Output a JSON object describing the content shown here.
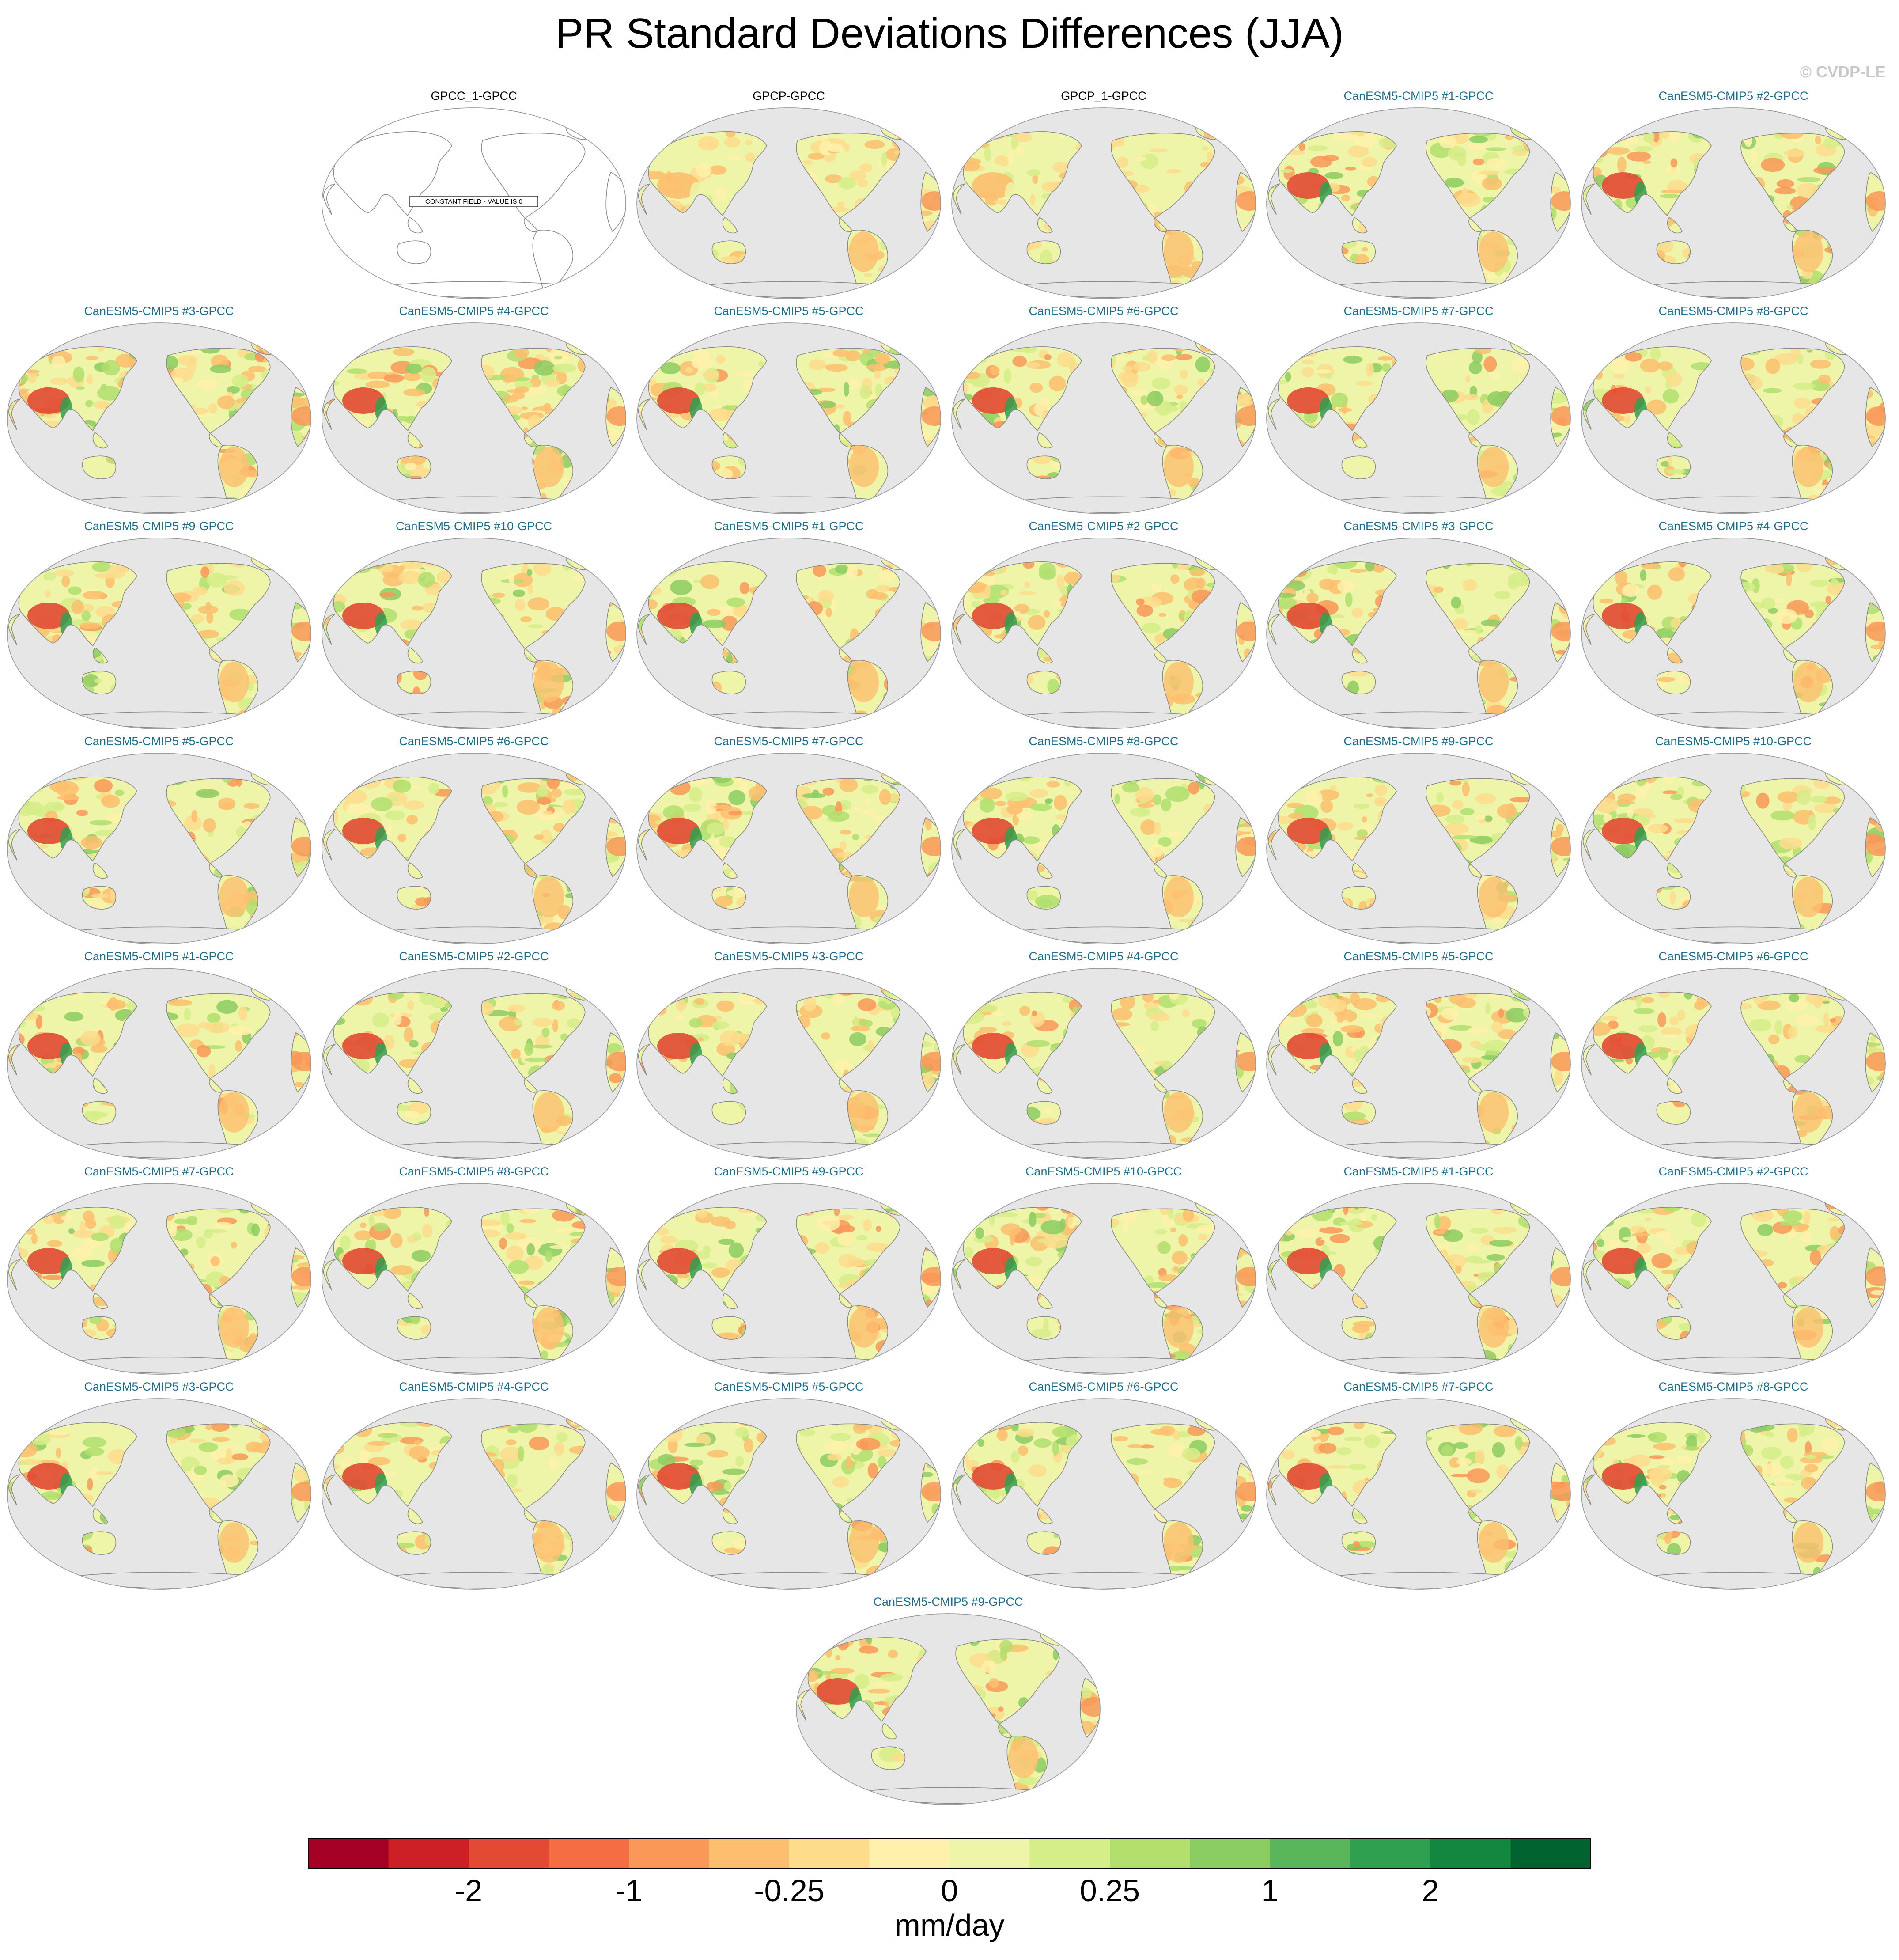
{
  "title": "PR Standard Deviations Differences (JJA)",
  "watermark": "© CVDP-LE",
  "panels": [
    {
      "title": "GPCC_1-GPCC",
      "kind": "obs",
      "constant": true,
      "constant_label": "CONSTANT FIELD - VALUE IS 0"
    },
    {
      "title": "GPCP-GPCC",
      "kind": "obs"
    },
    {
      "title": "GPCP_1-GPCC",
      "kind": "obs"
    },
    {
      "title": "CanESM5-CMIP5 #1-GPCC",
      "kind": "model"
    },
    {
      "title": "CanESM5-CMIP5 #2-GPCC",
      "kind": "model"
    },
    {
      "title": "CanESM5-CMIP5 #3-GPCC",
      "kind": "model"
    },
    {
      "title": "CanESM5-CMIP5 #4-GPCC",
      "kind": "model"
    },
    {
      "title": "CanESM5-CMIP5 #5-GPCC",
      "kind": "model"
    },
    {
      "title": "CanESM5-CMIP5 #6-GPCC",
      "kind": "model"
    },
    {
      "title": "CanESM5-CMIP5 #7-GPCC",
      "kind": "model"
    },
    {
      "title": "CanESM5-CMIP5 #8-GPCC",
      "kind": "model"
    },
    {
      "title": "CanESM5-CMIP5 #9-GPCC",
      "kind": "model"
    },
    {
      "title": "CanESM5-CMIP5 #10-GPCC",
      "kind": "model"
    },
    {
      "title": "CanESM5-CMIP5 #1-GPCC",
      "kind": "model"
    },
    {
      "title": "CanESM5-CMIP5 #2-GPCC",
      "kind": "model"
    },
    {
      "title": "CanESM5-CMIP5 #3-GPCC",
      "kind": "model"
    },
    {
      "title": "CanESM5-CMIP5 #4-GPCC",
      "kind": "model"
    },
    {
      "title": "CanESM5-CMIP5 #5-GPCC",
      "kind": "model"
    },
    {
      "title": "CanESM5-CMIP5 #6-GPCC",
      "kind": "model"
    },
    {
      "title": "CanESM5-CMIP5 #7-GPCC",
      "kind": "model"
    },
    {
      "title": "CanESM5-CMIP5 #8-GPCC",
      "kind": "model"
    },
    {
      "title": "CanESM5-CMIP5 #9-GPCC",
      "kind": "model"
    },
    {
      "title": "CanESM5-CMIP5 #10-GPCC",
      "kind": "model"
    },
    {
      "title": "CanESM5-CMIP5 #1-GPCC",
      "kind": "model"
    },
    {
      "title": "CanESM5-CMIP5 #2-GPCC",
      "kind": "model"
    },
    {
      "title": "CanESM5-CMIP5 #3-GPCC",
      "kind": "model"
    },
    {
      "title": "CanESM5-CMIP5 #4-GPCC",
      "kind": "model"
    },
    {
      "title": "CanESM5-CMIP5 #5-GPCC",
      "kind": "model"
    },
    {
      "title": "CanESM5-CMIP5 #6-GPCC",
      "kind": "model"
    },
    {
      "title": "CanESM5-CMIP5 #7-GPCC",
      "kind": "model"
    },
    {
      "title": "CanESM5-CMIP5 #8-GPCC",
      "kind": "model"
    },
    {
      "title": "CanESM5-CMIP5 #9-GPCC",
      "kind": "model"
    },
    {
      "title": "CanESM5-CMIP5 #10-GPCC",
      "kind": "model"
    },
    {
      "title": "CanESM5-CMIP5 #1-GPCC",
      "kind": "model"
    },
    {
      "title": "CanESM5-CMIP5 #2-GPCC",
      "kind": "model"
    },
    {
      "title": "CanESM5-CMIP5 #3-GPCC",
      "kind": "model"
    },
    {
      "title": "CanESM5-CMIP5 #4-GPCC",
      "kind": "model"
    },
    {
      "title": "CanESM5-CMIP5 #5-GPCC",
      "kind": "model"
    },
    {
      "title": "CanESM5-CMIP5 #6-GPCC",
      "kind": "model"
    },
    {
      "title": "CanESM5-CMIP5 #7-GPCC",
      "kind": "model"
    },
    {
      "title": "CanESM5-CMIP5 #8-GPCC",
      "kind": "model"
    },
    {
      "title": "CanESM5-CMIP5 #9-GPCC",
      "kind": "model"
    }
  ],
  "colorbar": {
    "colors": [
      "#a50026",
      "#cc1f26",
      "#e34a33",
      "#f46d43",
      "#f99858",
      "#fdbf6f",
      "#fddc8c",
      "#fff1ab",
      "#eef5a8",
      "#d6ee8a",
      "#b2df6e",
      "#8ccd62",
      "#5ab65a",
      "#2ea04f",
      "#13873f",
      "#006330"
    ],
    "tick_labels": [
      "-2",
      "-1",
      "-0.25",
      "0",
      "0.25",
      "1",
      "2"
    ],
    "units": "mm/day"
  },
  "map_colors": {
    "ocean": "#e6e6e6",
    "coast": "#8a8a8a",
    "blank_map_fill": "#ffffff"
  }
}
